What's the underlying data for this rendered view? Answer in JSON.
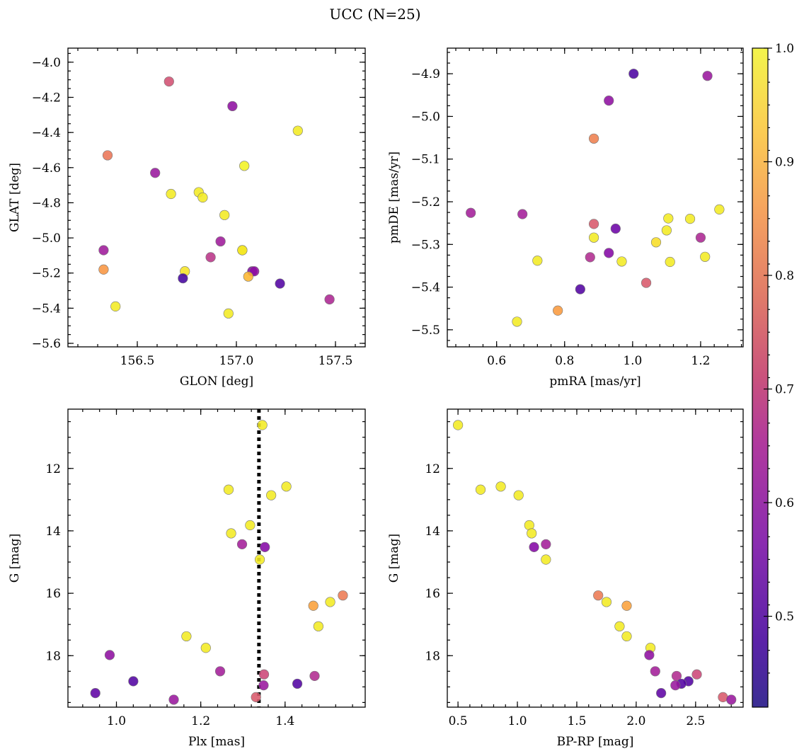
{
  "figure": {
    "title": "UCC (N=25)"
  },
  "colorbar": {
    "vmin": 0.42,
    "vmax": 1.0,
    "ticks": [
      0.5,
      0.6,
      0.7,
      0.8,
      0.9,
      1.0
    ],
    "tick_labels": [
      "0.5",
      "0.6",
      "0.7",
      "0.8",
      "0.9",
      "1.0"
    ],
    "colormap": "plasma"
  },
  "chart_data": [
    {
      "type": "scatter",
      "xlabel": "GLON [deg]",
      "ylabel": "GLAT [deg]",
      "xlim": [
        156.15,
        157.65
      ],
      "ylim": [
        -5.62,
        -3.92
      ],
      "xticks": [
        156.5,
        157.0,
        157.5
      ],
      "xtick_labels": [
        "156.5",
        "157.0",
        "157.5"
      ],
      "yticks": [
        -5.6,
        -5.4,
        -5.2,
        -5.0,
        -4.8,
        -4.6,
        -4.4,
        -4.2,
        -4.0
      ],
      "ytick_labels": [
        "−5.6",
        "−5.4",
        "−5.2",
        "−5.0",
        "−4.8",
        "−4.6",
        "−4.4",
        "−4.2",
        "−4.0"
      ],
      "points": [
        {
          "x": 156.66,
          "y": -4.11,
          "c": 0.7
        },
        {
          "x": 156.98,
          "y": -4.25,
          "c": 0.55
        },
        {
          "x": 157.31,
          "y": -4.39,
          "c": 0.98
        },
        {
          "x": 156.35,
          "y": -4.53,
          "c": 0.78
        },
        {
          "x": 157.04,
          "y": -4.59,
          "c": 0.99
        },
        {
          "x": 156.59,
          "y": -4.63,
          "c": 0.57
        },
        {
          "x": 156.67,
          "y": -4.75,
          "c": 0.98
        },
        {
          "x": 156.81,
          "y": -4.74,
          "c": 0.98
        },
        {
          "x": 156.83,
          "y": -4.77,
          "c": 0.98
        },
        {
          "x": 156.94,
          "y": -4.87,
          "c": 0.98
        },
        {
          "x": 156.92,
          "y": -5.02,
          "c": 0.58
        },
        {
          "x": 156.33,
          "y": -5.07,
          "c": 0.58
        },
        {
          "x": 157.03,
          "y": -5.07,
          "c": 0.93
        },
        {
          "x": 156.87,
          "y": -5.11,
          "c": 0.64
        },
        {
          "x": 156.33,
          "y": -5.18,
          "c": 0.84
        },
        {
          "x": 156.74,
          "y": -5.19,
          "c": 0.97
        },
        {
          "x": 157.08,
          "y": -5.19,
          "c": 0.52
        },
        {
          "x": 157.09,
          "y": -5.19,
          "c": 0.55
        },
        {
          "x": 157.06,
          "y": -5.22,
          "c": 0.9
        },
        {
          "x": 156.73,
          "y": -5.23,
          "c": 0.43
        },
        {
          "x": 157.22,
          "y": -5.26,
          "c": 0.45
        },
        {
          "x": 157.47,
          "y": -5.35,
          "c": 0.61
        },
        {
          "x": 156.39,
          "y": -5.39,
          "c": 0.98
        },
        {
          "x": 156.96,
          "y": -5.43,
          "c": 0.98
        },
        {
          "x": 157.03,
          "y": -5.07,
          "c": 0.98
        }
      ]
    },
    {
      "type": "scatter",
      "xlabel": "pmRA [mas/yr]",
      "ylabel": "pmDE [mas/yr]",
      "xlim": [
        0.455,
        1.325
      ],
      "ylim": [
        -5.54,
        -4.84
      ],
      "xticks": [
        0.6,
        0.8,
        1.0,
        1.2
      ],
      "xtick_labels": [
        "0.6",
        "0.8",
        "1.0",
        "1.2"
      ],
      "yticks": [
        -5.5,
        -5.4,
        -5.3,
        -5.2,
        -5.1,
        -5.0,
        -4.9
      ],
      "ytick_labels": [
        "−5.5",
        "−5.4",
        "−5.3",
        "−5.2",
        "−5.1",
        "−5.0",
        "−4.9"
      ],
      "points": [
        {
          "x": 1.003,
          "y": -4.9,
          "c": 0.44
        },
        {
          "x": 1.22,
          "y": -4.905,
          "c": 0.57
        },
        {
          "x": 0.93,
          "y": -4.963,
          "c": 0.55
        },
        {
          "x": 0.886,
          "y": -5.052,
          "c": 0.8
        },
        {
          "x": 1.255,
          "y": -5.218,
          "c": 0.98
        },
        {
          "x": 0.524,
          "y": -5.226,
          "c": 0.59
        },
        {
          "x": 0.676,
          "y": -5.229,
          "c": 0.59
        },
        {
          "x": 1.105,
          "y": -5.239,
          "c": 0.98
        },
        {
          "x": 1.169,
          "y": -5.24,
          "c": 0.98
        },
        {
          "x": 0.886,
          "y": -5.252,
          "c": 0.72
        },
        {
          "x": 0.95,
          "y": -5.263,
          "c": 0.49
        },
        {
          "x": 1.1,
          "y": -5.267,
          "c": 0.98
        },
        {
          "x": 0.886,
          "y": -5.284,
          "c": 0.98
        },
        {
          "x": 1.2,
          "y": -5.284,
          "c": 0.61
        },
        {
          "x": 1.069,
          "y": -5.295,
          "c": 0.96
        },
        {
          "x": 0.93,
          "y": -5.32,
          "c": 0.53
        },
        {
          "x": 0.875,
          "y": -5.33,
          "c": 0.62
        },
        {
          "x": 1.213,
          "y": -5.329,
          "c": 0.98
        },
        {
          "x": 0.72,
          "y": -5.338,
          "c": 0.98
        },
        {
          "x": 0.968,
          "y": -5.34,
          "c": 0.98
        },
        {
          "x": 1.11,
          "y": -5.341,
          "c": 0.98
        },
        {
          "x": 1.04,
          "y": -5.39,
          "c": 0.72
        },
        {
          "x": 0.846,
          "y": -5.405,
          "c": 0.45
        },
        {
          "x": 0.78,
          "y": -5.455,
          "c": 0.85
        },
        {
          "x": 0.66,
          "y": -5.481,
          "c": 0.98
        }
      ]
    },
    {
      "type": "scatter",
      "xlabel": "Plx [mas]",
      "ylabel": "G [mag]",
      "xlim": [
        0.885,
        1.59
      ],
      "ylim": [
        19.65,
        10.1
      ],
      "y_inverted": true,
      "xticks": [
        1.0,
        1.2,
        1.4
      ],
      "xtick_labels": [
        "1.0",
        "1.2",
        "1.4"
      ],
      "yticks": [
        12,
        14,
        16,
        18
      ],
      "ytick_labels": [
        "12",
        "14",
        "16",
        "18"
      ],
      "vline": {
        "x": 1.338,
        "style": "dotted"
      },
      "points": [
        {
          "x": 1.346,
          "y": 10.61,
          "c": 0.98
        },
        {
          "x": 1.403,
          "y": 12.58,
          "c": 0.98
        },
        {
          "x": 1.266,
          "y": 12.68,
          "c": 0.98
        },
        {
          "x": 1.367,
          "y": 12.86,
          "c": 0.98
        },
        {
          "x": 1.317,
          "y": 13.82,
          "c": 0.98
        },
        {
          "x": 1.272,
          "y": 14.08,
          "c": 0.98
        },
        {
          "x": 1.298,
          "y": 14.43,
          "c": 0.59
        },
        {
          "x": 1.352,
          "y": 14.52,
          "c": 0.53
        },
        {
          "x": 1.34,
          "y": 14.92,
          "c": 0.98
        },
        {
          "x": 1.537,
          "y": 16.07,
          "c": 0.79
        },
        {
          "x": 1.507,
          "y": 16.28,
          "c": 0.98
        },
        {
          "x": 1.467,
          "y": 16.4,
          "c": 0.86
        },
        {
          "x": 1.479,
          "y": 17.06,
          "c": 0.98
        },
        {
          "x": 1.166,
          "y": 17.38,
          "c": 0.98
        },
        {
          "x": 1.212,
          "y": 17.75,
          "c": 0.98
        },
        {
          "x": 0.984,
          "y": 17.98,
          "c": 0.55
        },
        {
          "x": 1.246,
          "y": 18.5,
          "c": 0.59
        },
        {
          "x": 1.35,
          "y": 18.6,
          "c": 0.68
        },
        {
          "x": 1.47,
          "y": 18.65,
          "c": 0.62
        },
        {
          "x": 1.04,
          "y": 18.82,
          "c": 0.45
        },
        {
          "x": 1.429,
          "y": 18.9,
          "c": 0.45
        },
        {
          "x": 1.349,
          "y": 18.95,
          "c": 0.57
        },
        {
          "x": 0.95,
          "y": 19.2,
          "c": 0.47
        },
        {
          "x": 1.331,
          "y": 19.33,
          "c": 0.72
        },
        {
          "x": 1.136,
          "y": 19.41,
          "c": 0.57
        }
      ]
    },
    {
      "type": "scatter",
      "xlabel": "BP-RP [mag]",
      "ylabel": "G [mag]",
      "xlim": [
        0.41,
        2.9
      ],
      "ylim": [
        19.65,
        10.1
      ],
      "y_inverted": true,
      "xticks": [
        0.5,
        1.0,
        1.5,
        2.0,
        2.5
      ],
      "xtick_labels": [
        "0.5",
        "1.0",
        "1.5",
        "2.0",
        "2.5"
      ],
      "yticks": [
        12,
        14,
        16,
        18
      ],
      "ytick_labels": [
        "12",
        "14",
        "16",
        "18"
      ],
      "points": [
        {
          "x": 0.5,
          "y": 10.61,
          "c": 0.98
        },
        {
          "x": 0.69,
          "y": 12.68,
          "c": 0.98
        },
        {
          "x": 0.86,
          "y": 12.58,
          "c": 0.98
        },
        {
          "x": 1.01,
          "y": 12.86,
          "c": 0.98
        },
        {
          "x": 1.1,
          "y": 13.82,
          "c": 0.98
        },
        {
          "x": 1.12,
          "y": 14.08,
          "c": 0.98
        },
        {
          "x": 1.14,
          "y": 14.52,
          "c": 0.53
        },
        {
          "x": 1.24,
          "y": 14.43,
          "c": 0.59
        },
        {
          "x": 1.24,
          "y": 14.92,
          "c": 0.98
        },
        {
          "x": 1.68,
          "y": 16.07,
          "c": 0.79
        },
        {
          "x": 1.75,
          "y": 16.28,
          "c": 0.98
        },
        {
          "x": 1.92,
          "y": 16.4,
          "c": 0.86
        },
        {
          "x": 1.86,
          "y": 17.06,
          "c": 0.98
        },
        {
          "x": 1.92,
          "y": 17.38,
          "c": 0.98
        },
        {
          "x": 2.12,
          "y": 17.75,
          "c": 0.98
        },
        {
          "x": 2.11,
          "y": 17.98,
          "c": 0.55
        },
        {
          "x": 2.16,
          "y": 18.5,
          "c": 0.59
        },
        {
          "x": 2.34,
          "y": 18.65,
          "c": 0.62
        },
        {
          "x": 2.51,
          "y": 18.6,
          "c": 0.68
        },
        {
          "x": 2.44,
          "y": 18.82,
          "c": 0.45
        },
        {
          "x": 2.38,
          "y": 18.9,
          "c": 0.45
        },
        {
          "x": 2.33,
          "y": 18.95,
          "c": 0.57
        },
        {
          "x": 2.21,
          "y": 19.2,
          "c": 0.47
        },
        {
          "x": 2.73,
          "y": 19.33,
          "c": 0.72
        },
        {
          "x": 2.8,
          "y": 19.41,
          "c": 0.57
        }
      ]
    }
  ]
}
